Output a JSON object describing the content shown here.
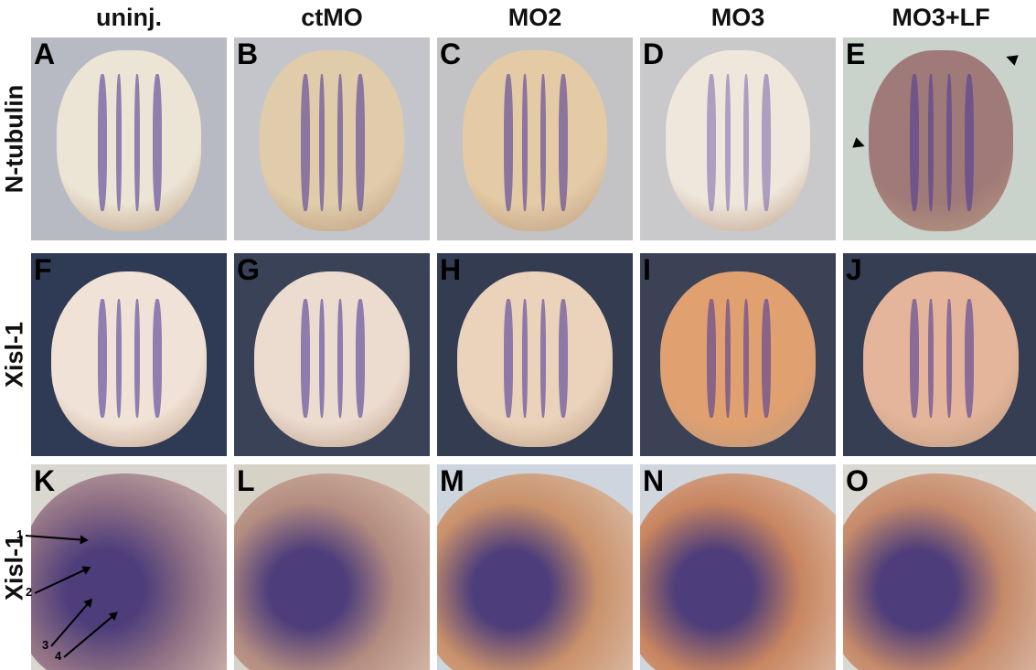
{
  "columns": [
    "uninj.",
    "ctMO",
    "MO2",
    "MO3",
    "MO3+LF"
  ],
  "rows": [
    {
      "label": "N-tubulin",
      "panels": [
        "A",
        "B",
        "C",
        "D",
        "E"
      ]
    },
    {
      "label": "Xisl-1",
      "panels": [
        "F",
        "G",
        "H",
        "I",
        "J"
      ]
    },
    {
      "label": "Xisl-1",
      "panels": [
        "K",
        "L",
        "M",
        "N",
        "O"
      ]
    }
  ],
  "annotations": {
    "numbers": [
      "1",
      "2",
      "3",
      "4"
    ]
  },
  "colors": {
    "stain": "#4b3f8f",
    "bg_row1": "#b9bcc4",
    "bg_row2": "#2e3a52",
    "bg_row3": "#d8d6ce"
  }
}
